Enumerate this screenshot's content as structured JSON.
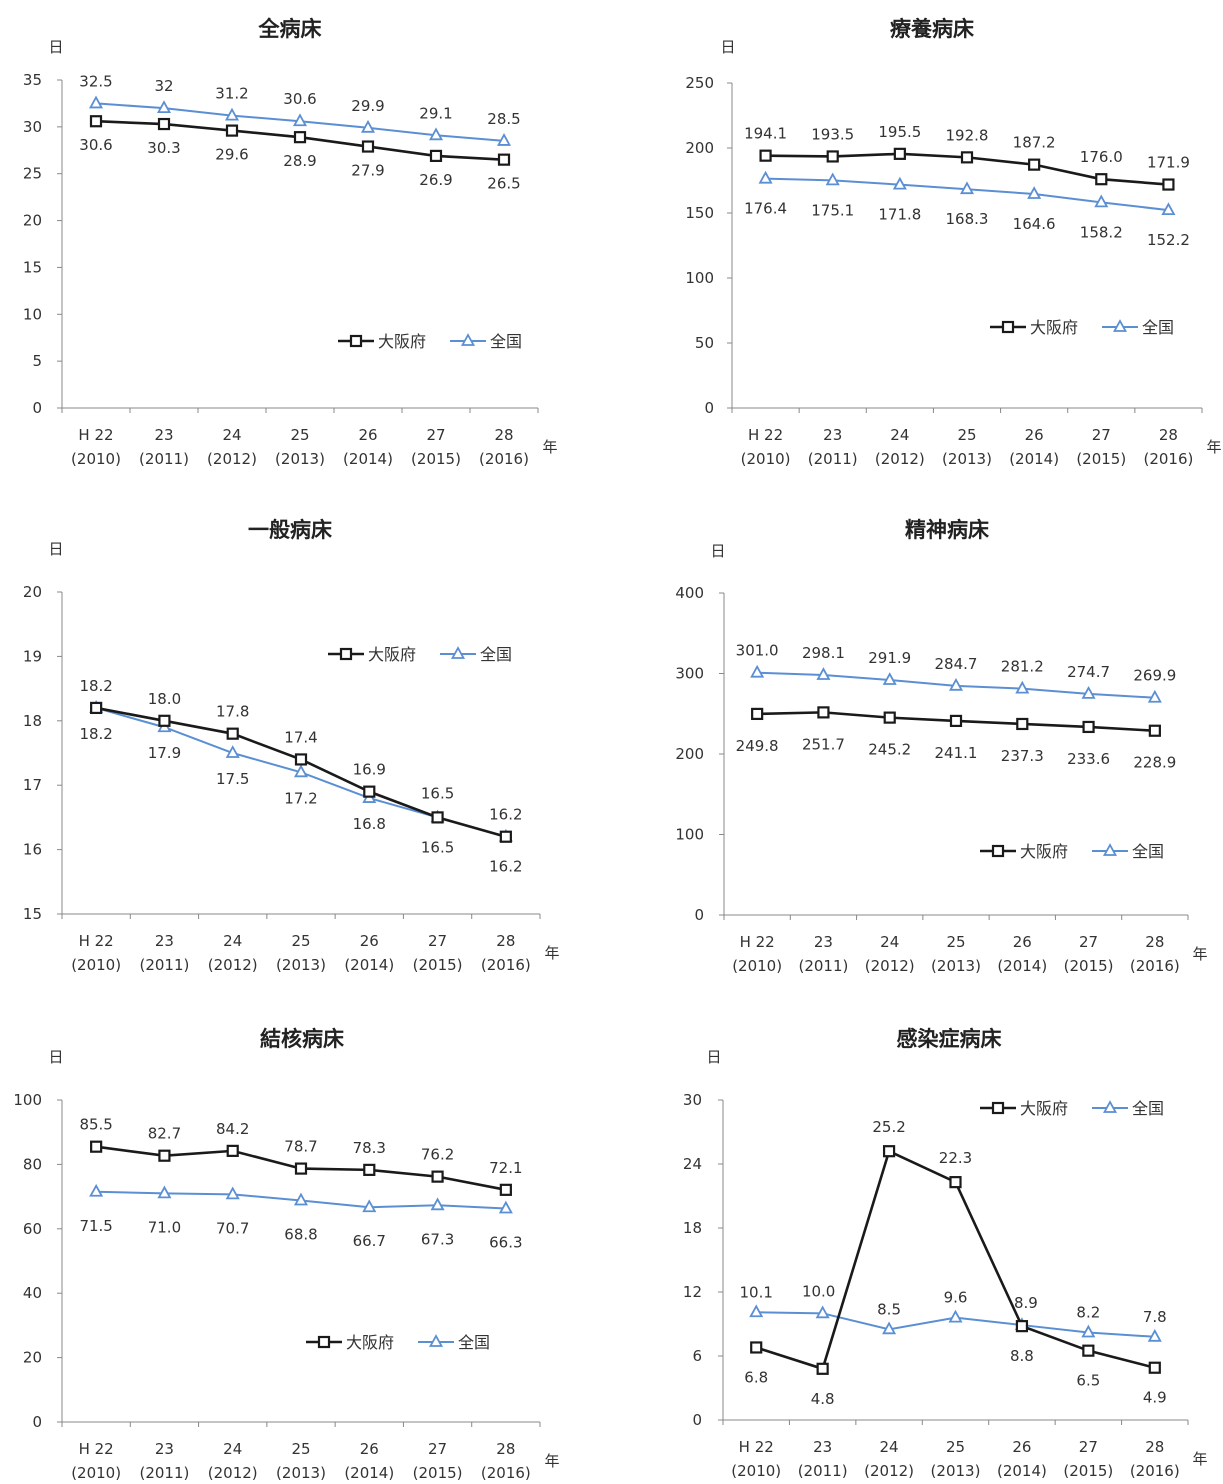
{
  "chart_data": [
    {
      "type": "line",
      "title": "全病床",
      "ylabel": "日",
      "xunit": "年",
      "ylim": [
        0,
        35
      ],
      "yticks": [
        0,
        5,
        10,
        15,
        20,
        25,
        30,
        35
      ],
      "categories": [
        {
          "era": "H 22",
          "year": "(2010)"
        },
        {
          "era": "23",
          "year": "(2011)"
        },
        {
          "era": "24",
          "year": "(2012)"
        },
        {
          "era": "25",
          "year": "(2013)"
        },
        {
          "era": "26",
          "year": "(2014)"
        },
        {
          "era": "27",
          "year": "(2015)"
        },
        {
          "era": "28",
          "year": "(2016)"
        }
      ],
      "legend_position": "right-middle",
      "series": [
        {
          "name": "大阪府",
          "color": "#1a1a1a",
          "marker": "square",
          "values": [
            30.6,
            30.3,
            29.6,
            28.9,
            27.9,
            26.9,
            26.5
          ],
          "labels": [
            "30.6",
            "30.3",
            "29.6",
            "28.9",
            "27.9",
            "26.9",
            "26.5"
          ]
        },
        {
          "name": "全国",
          "color": "#5b8fd3",
          "marker": "triangle",
          "values": [
            32.5,
            32.0,
            31.2,
            30.6,
            29.9,
            29.1,
            28.5
          ],
          "labels": [
            "32.5",
            "32",
            "31.2",
            "30.6",
            "29.9",
            "29.1",
            "28.5"
          ]
        }
      ]
    },
    {
      "type": "line",
      "title": "療養病床",
      "ylabel": "日",
      "xunit": "年",
      "ylim": [
        0,
        250
      ],
      "yticks": [
        0,
        50,
        100,
        150,
        200,
        250
      ],
      "categories": [
        {
          "era": "H 22",
          "year": "(2010)"
        },
        {
          "era": "23",
          "year": "(2011)"
        },
        {
          "era": "24",
          "year": "(2012)"
        },
        {
          "era": "25",
          "year": "(2013)"
        },
        {
          "era": "26",
          "year": "(2014)"
        },
        {
          "era": "27",
          "year": "(2015)"
        },
        {
          "era": "28",
          "year": "(2016)"
        }
      ],
      "legend_position": "right-middle",
      "series": [
        {
          "name": "大阪府",
          "color": "#1a1a1a",
          "marker": "square",
          "values": [
            194.1,
            193.5,
            195.5,
            192.8,
            187.2,
            176.0,
            171.9
          ],
          "labels": [
            "194.1",
            "193.5",
            "195.5",
            "192.8",
            "187.2",
            "176.0",
            "171.9"
          ]
        },
        {
          "name": "全国",
          "color": "#5b8fd3",
          "marker": "triangle",
          "values": [
            176.4,
            175.1,
            171.8,
            168.3,
            164.6,
            158.2,
            152.2
          ],
          "labels": [
            "176.4",
            "175.1",
            "171.8",
            "168.3",
            "164.6",
            "158.2",
            "152.2"
          ]
        }
      ]
    },
    {
      "type": "line",
      "title": "一般病床",
      "ylabel": "日",
      "xunit": "年",
      "ylim": [
        15,
        20
      ],
      "yticks": [
        15,
        16,
        17,
        18,
        19,
        20
      ],
      "categories": [
        {
          "era": "H 22",
          "year": "(2010)"
        },
        {
          "era": "23",
          "year": "(2011)"
        },
        {
          "era": "24",
          "year": "(2012)"
        },
        {
          "era": "25",
          "year": "(2013)"
        },
        {
          "era": "26",
          "year": "(2014)"
        },
        {
          "era": "27",
          "year": "(2015)"
        },
        {
          "era": "28",
          "year": "(2016)"
        }
      ],
      "legend_position": "top-right",
      "series": [
        {
          "name": "大阪府",
          "color": "#1a1a1a",
          "marker": "square",
          "values": [
            18.2,
            18.0,
            17.8,
            17.4,
            16.9,
            16.5,
            16.2
          ],
          "labels": [
            "18.2",
            "18.0",
            "17.8",
            "17.4",
            "16.9",
            "16.5",
            "16.2"
          ]
        },
        {
          "name": "全国",
          "color": "#5b8fd3",
          "marker": "triangle",
          "values": [
            18.2,
            17.9,
            17.5,
            17.2,
            16.8,
            16.5,
            16.2
          ],
          "labels": [
            "18.2",
            "17.9",
            "17.5",
            "17.2",
            "16.8",
            "16.5",
            "16.2"
          ]
        }
      ]
    },
    {
      "type": "line",
      "title": "精神病床",
      "ylabel": "日",
      "xunit": "年",
      "ylim": [
        0,
        400
      ],
      "yticks": [
        0,
        100,
        200,
        300,
        400
      ],
      "categories": [
        {
          "era": "H 22",
          "year": "(2010)"
        },
        {
          "era": "23",
          "year": "(2011)"
        },
        {
          "era": "24",
          "year": "(2012)"
        },
        {
          "era": "25",
          "year": "(2013)"
        },
        {
          "era": "26",
          "year": "(2014)"
        },
        {
          "era": "27",
          "year": "(2015)"
        },
        {
          "era": "28",
          "year": "(2016)"
        }
      ],
      "legend_position": "bottom-right",
      "series": [
        {
          "name": "大阪府",
          "color": "#1a1a1a",
          "marker": "square",
          "values": [
            249.8,
            251.7,
            245.2,
            241.1,
            237.3,
            233.6,
            228.9
          ],
          "labels": [
            "249.8",
            "251.7",
            "245.2",
            "241.1",
            "237.3",
            "233.6",
            "228.9"
          ]
        },
        {
          "name": "全国",
          "color": "#5b8fd3",
          "marker": "triangle",
          "values": [
            301.0,
            298.1,
            291.9,
            284.7,
            281.2,
            274.7,
            269.9
          ],
          "labels": [
            "301.0",
            "298.1",
            "291.9",
            "284.7",
            "281.2",
            "274.7",
            "269.9"
          ]
        }
      ]
    },
    {
      "type": "line",
      "title": "結核病床",
      "ylabel": "日",
      "xunit": "年",
      "ylim": [
        0,
        100
      ],
      "yticks": [
        0,
        20,
        40,
        60,
        80,
        100
      ],
      "categories": [
        {
          "era": "H 22",
          "year": "(2010)"
        },
        {
          "era": "23",
          "year": "(2011)"
        },
        {
          "era": "24",
          "year": "(2012)"
        },
        {
          "era": "25",
          "year": "(2013)"
        },
        {
          "era": "26",
          "year": "(2014)"
        },
        {
          "era": "27",
          "year": "(2015)"
        },
        {
          "era": "28",
          "year": "(2016)"
        }
      ],
      "legend_position": "bottom-right",
      "series": [
        {
          "name": "大阪府",
          "color": "#1a1a1a",
          "marker": "square",
          "values": [
            85.5,
            82.7,
            84.2,
            78.7,
            78.3,
            76.2,
            72.1
          ],
          "labels": [
            "85.5",
            "82.7",
            "84.2",
            "78.7",
            "78.3",
            "76.2",
            "72.1"
          ]
        },
        {
          "name": "全国",
          "color": "#5b8fd3",
          "marker": "triangle",
          "values": [
            71.5,
            71.0,
            70.7,
            68.8,
            66.7,
            67.3,
            66.3
          ],
          "labels": [
            "71.5",
            "71.0",
            "70.7",
            "68.8",
            "66.7",
            "67.3",
            "66.3"
          ]
        }
      ]
    },
    {
      "type": "line",
      "title": "感染症病床",
      "ylabel": "日",
      "xunit": "年",
      "ylim": [
        0,
        30
      ],
      "yticks": [
        0,
        6,
        12,
        18,
        24,
        30
      ],
      "categories": [
        {
          "era": "H 22",
          "year": "(2010)"
        },
        {
          "era": "23",
          "year": "(2011)"
        },
        {
          "era": "24",
          "year": "(2012)"
        },
        {
          "era": "25",
          "year": "(2013)"
        },
        {
          "era": "26",
          "year": "(2014)"
        },
        {
          "era": "27",
          "year": "(2015)"
        },
        {
          "era": "28",
          "year": "(2016)"
        }
      ],
      "legend_position": "top-right",
      "series": [
        {
          "name": "大阪府",
          "color": "#1a1a1a",
          "marker": "square",
          "values": [
            6.8,
            4.8,
            25.2,
            22.3,
            8.8,
            6.5,
            4.9
          ],
          "labels": [
            "6.8",
            "4.8",
            "25.2",
            "22.3",
            "8.8",
            "6.5",
            "4.9"
          ]
        },
        {
          "name": "全国",
          "color": "#5b8fd3",
          "marker": "triangle",
          "values": [
            10.1,
            10.0,
            8.5,
            9.6,
            8.9,
            8.2,
            7.8
          ],
          "labels": [
            "10.1",
            "10.0",
            "8.5",
            "9.6",
            "8.9",
            "8.2",
            "7.8"
          ]
        }
      ]
    }
  ]
}
